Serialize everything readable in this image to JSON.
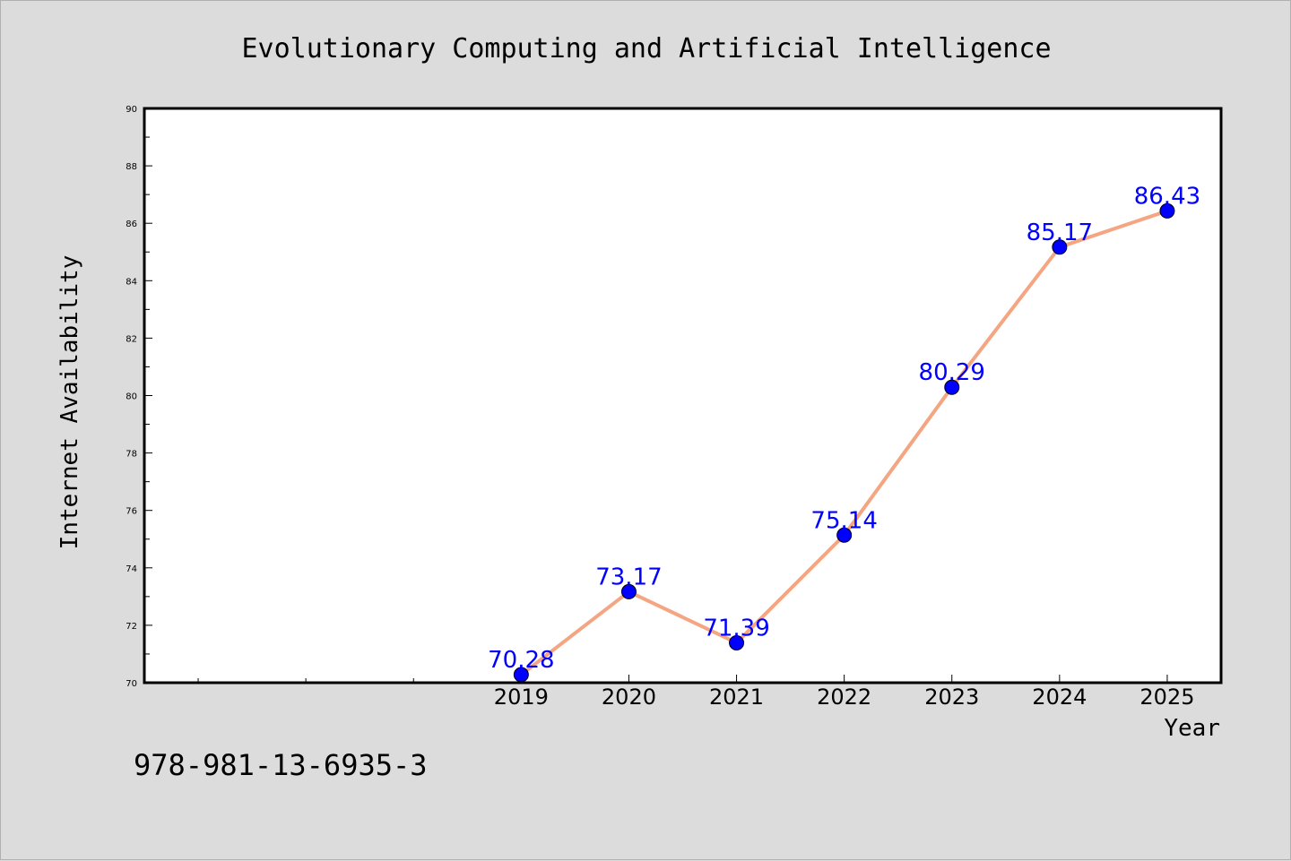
{
  "chart_data": {
    "type": "line",
    "title": "Evolutionary Computing and Artificial Intelligence",
    "xlabel": "Year",
    "ylabel": "Internet Availability",
    "x": [
      2019,
      2020,
      2021,
      2022,
      2023,
      2024,
      2025
    ],
    "x_tick_labels": [
      "2019",
      "2020",
      "2021",
      "2022",
      "2023",
      "2024",
      "2025"
    ],
    "xlim": [
      2015.5,
      2025.5
    ],
    "ylim": [
      70,
      90
    ],
    "y_ticks": [
      70,
      72,
      74,
      76,
      78,
      80,
      82,
      84,
      86,
      88,
      90
    ],
    "series": [
      {
        "values": [
          70.28,
          73.17,
          71.39,
          75.14,
          80.29,
          85.17,
          86.43
        ],
        "data_labels": [
          "70.28",
          "73.17",
          "71.39",
          "75.14",
          "80.29",
          "85.17",
          "86.43"
        ],
        "line_color": "#f4a582",
        "marker_color": "#0000ff"
      }
    ],
    "grid": false,
    "legend": false
  },
  "footnote": "978-981-13-6935-3",
  "colors": {
    "background": "#dcdcdc",
    "plot_background": "#ffffff",
    "data_label": "#0000ff"
  }
}
